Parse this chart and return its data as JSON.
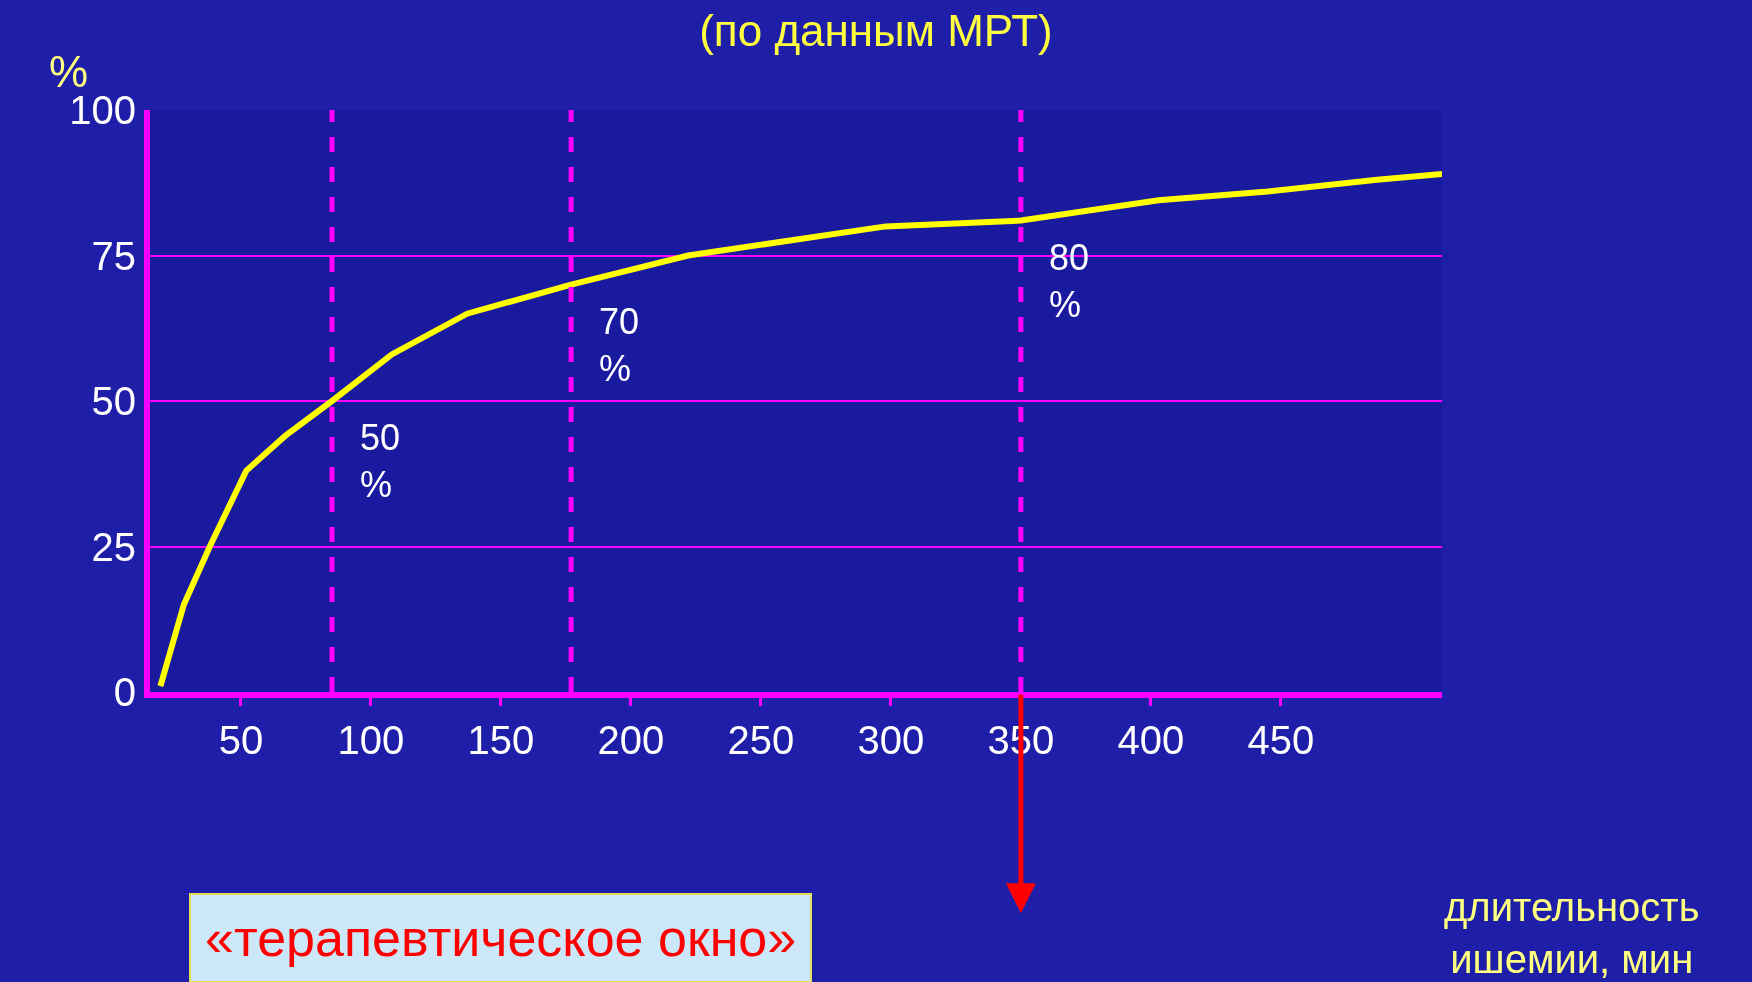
{
  "chart_data": {
    "type": "line",
    "title": "(по данным МРТ)",
    "xlabel": "длительность ишемии, мин",
    "ylabel": "%",
    "x": [
      19,
      28,
      38,
      52,
      67,
      85,
      108,
      137,
      177,
      222,
      298,
      350,
      403,
      445,
      487,
      512
    ],
    "series": [
      {
        "color": "#ffff00",
        "values": [
          1,
          15,
          25,
          38,
          44,
          50,
          58,
          65,
          70,
          75,
          80,
          81,
          84.5,
          86,
          88,
          89
        ]
      }
    ],
    "xlim": [
      15,
      512
    ],
    "xticks": [
      50,
      100,
      150,
      200,
      250,
      300,
      350,
      400,
      450
    ],
    "ylim": [
      0,
      100
    ],
    "yticks": [
      0,
      25,
      50,
      75,
      100
    ],
    "grid": "y",
    "marker": "none",
    "line_style": "solid",
    "ref_lines": [
      {
        "axis": "x",
        "value": 85,
        "color": "#ff00ff",
        "line_style": "dashed"
      },
      {
        "axis": "x",
        "value": 177,
        "color": "#ff00ff",
        "line_style": "dashed"
      },
      {
        "axis": "x",
        "value": 350,
        "color": "#ff00ff",
        "line_style": "dashed"
      }
    ],
    "annotations": [
      {
        "text": "50 %",
        "x": 85,
        "y": 50
      },
      {
        "text": "70 %",
        "x": 177,
        "y": 70
      },
      {
        "text": "80 %",
        "x": 350,
        "y": 81
      },
      "«терапевтическое окно»"
    ]
  }
}
